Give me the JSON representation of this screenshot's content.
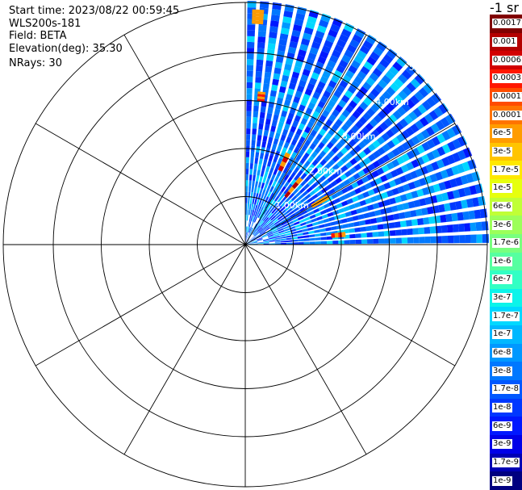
{
  "header": {
    "start_time": "Start time: 2023/08/22 00:59:45",
    "instrument": "WLS200s-181",
    "field": "Field: BETA",
    "elevation": "Elevation(deg): 35.30",
    "nrays": "NRays: 30"
  },
  "colorbar": {
    "unit_label": "-1 sr",
    "levels": [
      {
        "label": "0.0017",
        "color": "#800000"
      },
      {
        "label": "0.001",
        "color": "#b40000"
      },
      {
        "label": "0.0006",
        "color": "#d20000"
      },
      {
        "label": "0.0003",
        "color": "#ff1800"
      },
      {
        "label": "0.00017",
        "color": "#ff4c00"
      },
      {
        "label": "0.0001",
        "color": "#ff7400"
      },
      {
        "label": "6e-5",
        "color": "#ff9c00"
      },
      {
        "label": "3e-5",
        "color": "#ffc400"
      },
      {
        "label": "1.7e-5",
        "color": "#ffe800"
      },
      {
        "label": "1e-5",
        "color": "#e6ff0e"
      },
      {
        "label": "6e-6",
        "color": "#c0ff36"
      },
      {
        "label": "3e-6",
        "color": "#9cff5a"
      },
      {
        "label": "1.7e-6",
        "color": "#78ff7e"
      },
      {
        "label": "1e-6",
        "color": "#56ffa0"
      },
      {
        "label": "6e-7",
        "color": "#32ffc4"
      },
      {
        "label": "3e-7",
        "color": "#0cf4ea"
      },
      {
        "label": "1.7e-7",
        "color": "#00d8ff"
      },
      {
        "label": "1e-7",
        "color": "#00b8ff"
      },
      {
        "label": "6e-8",
        "color": "#0098ff"
      },
      {
        "label": "3e-8",
        "color": "#0078ff"
      },
      {
        "label": "1.7e-8",
        "color": "#0058ff"
      },
      {
        "label": "1e-8",
        "color": "#0038ff"
      },
      {
        "label": "6e-9",
        "color": "#0018ff"
      },
      {
        "label": "3e-9",
        "color": "#0000e8"
      },
      {
        "label": "1.7e-9",
        "color": "#0000b4"
      },
      {
        "label": "1e-9",
        "color": "#000080"
      }
    ]
  },
  "chart_data": {
    "type": "heatmap",
    "plot_kind": "polar PPI scan",
    "range_rings_km": [
      "1.00km",
      "2.00km",
      "3.00km",
      "4.00km",
      "5."
    ],
    "ring_label_color": "#ffffff",
    "azimuth_range_deg": [
      0,
      90
    ],
    "nrays": 30,
    "spokes": 12,
    "background_value": "1e-8",
    "features": [
      {
        "azimuth_deg": 6,
        "range_km": [
          3.0,
          3.2
        ],
        "value": "0.0003"
      },
      {
        "azimuth_deg": 3,
        "range_km": [
          4.6,
          4.9
        ],
        "value": "6e-5"
      },
      {
        "azimuth_deg": 25,
        "range_km": [
          1.7,
          2.1
        ],
        "value": "0.0006"
      },
      {
        "azimuth_deg": 40,
        "range_km": [
          1.3,
          1.8
        ],
        "value": "0.001"
      },
      {
        "azimuth_deg": 60,
        "range_km": [
          1.6,
          2.0
        ],
        "value": "6e-5"
      },
      {
        "azimuth_deg": 84,
        "range_km": [
          1.8,
          2.1
        ],
        "value": "0.0003"
      }
    ]
  }
}
